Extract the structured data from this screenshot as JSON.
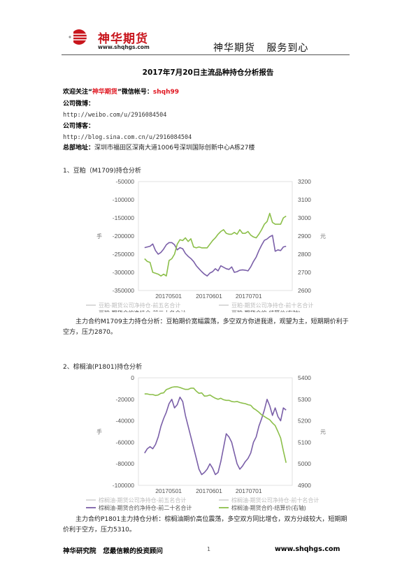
{
  "header": {
    "logo_text": "神华期货",
    "logo_url": "www.shqhgs.com",
    "slogan": "神华期货   服务到心"
  },
  "title": "2017年7月20日主流品种持仓分析报告",
  "info": {
    "wechat_prefix": "欢迎关注“",
    "wechat_name": "神华期货",
    "wechat_mid": "”微信帐号：",
    "wechat_id": "shqh99",
    "weibo_label": "公司微博：",
    "weibo_url": "http://weibo.com/u/2916084504",
    "blog_label": "公司博客：",
    "blog_url": "http://blog.sina.com.cn/u/2916084504",
    "address_label": "总部地址：",
    "address": "深圳市福田区深南大道1006号深圳国际创新中心A栋27楼"
  },
  "sections": [
    {
      "heading": "1、豆粕（M1709)持仓分析",
      "analysis": "主力合约M1709主力持仓分析：豆粕期价宽幅震荡，多空双方你进我退，观望为主，短期期价利于空方，压力2870。"
    },
    {
      "heading": "2、棕榈油(P1801)持仓分析",
      "analysis": "主力合约P1801主力持仓分析：棕榈油期价高位震荡，多空双方同比增仓，双方分歧较大，短期期价利于空方，压力5310。"
    }
  ],
  "chart_data": [
    {
      "type": "line",
      "left_axis_title": "手",
      "right_axis_title": "元",
      "left_ticks": [
        "-50000",
        "-100000",
        "-150000",
        "-200000",
        "-250000",
        "-300000",
        "-350000"
      ],
      "right_ticks": [
        "3200",
        "3100",
        "3000",
        "2900",
        "2800",
        "2700",
        "2600"
      ],
      "ylim_left": [
        -350000,
        -50000
      ],
      "ylim_right": [
        2600,
        3200
      ],
      "x_ticks": [
        "20170501",
        "20170601",
        "20170701"
      ],
      "x_tick_positions": [
        0.196,
        0.459,
        0.717
      ],
      "legend_row1": [
        "豆粕-期货公司净持仓-前五名合计",
        "豆粕-期货公司净持仓-前十名合计"
      ],
      "legend_row2": [
        "豆粕-期货合约净持仓-前二十名合计",
        "豆粕-期货合约-结算价(右轴)"
      ],
      "series": [
        {
          "name": "豆粕-期货合约净持仓-前二十名合计",
          "axis": "left",
          "color": "#7a5fa8",
          "values": [
            -232000,
            -230000,
            -228000,
            -222000,
            -240000,
            -250000,
            -245000,
            -236000,
            -224000,
            -218000,
            -218000,
            -224000,
            -238000,
            -232000,
            -235000,
            -248000,
            -256000,
            -262000,
            -270000,
            -282000,
            -290000,
            -298000,
            -305000,
            -310000,
            -302000,
            -298000,
            -290000,
            -296000,
            -282000,
            -286000,
            -290000,
            -292000,
            -285000,
            -300000,
            -298000,
            -294000,
            -293000,
            -294000,
            -296000,
            -285000,
            -270000,
            -258000,
            -240000,
            -225000,
            -212000,
            -208000,
            -202000,
            -198000,
            -242000,
            -238000,
            -240000,
            -230000,
            -228000
          ]
        },
        {
          "name": "豆粕-期货合约-结算价(右轴)",
          "axis": "right",
          "color": "#8cbf4a",
          "values": [
            2775,
            2760,
            2755,
            2700,
            2695,
            2690,
            2680,
            2690,
            2680,
            2765,
            2775,
            2800,
            2855,
            2880,
            2875,
            2890,
            2870,
            2885,
            2840,
            2835,
            2840,
            2835,
            2835,
            2835,
            2855,
            2875,
            2890,
            2910,
            2925,
            2935,
            2915,
            2910,
            2910,
            2920,
            2910,
            2935,
            2915,
            2915,
            2925,
            2905,
            2895,
            2890,
            2910,
            2935,
            2965,
            2980,
            3025,
            2975,
            2965,
            2965,
            2965,
            3000,
            3010
          ]
        }
      ]
    },
    {
      "type": "line",
      "left_axis_title": "手",
      "right_axis_title": "元",
      "left_ticks": [
        "0",
        "-20000",
        "-40000",
        "-60000",
        "-80000",
        "-100000"
      ],
      "right_ticks": [
        "5400",
        "5300",
        "5200",
        "5100",
        "5000",
        "4900"
      ],
      "ylim_left": [
        -100000,
        0
      ],
      "ylim_right": [
        4900,
        5400
      ],
      "x_ticks": [
        "20170501",
        "20170601",
        "20170701"
      ],
      "x_tick_positions": [
        0.196,
        0.459,
        0.717
      ],
      "legend_row1": [
        "棕榈油-期货公司净持仓-前五名合计",
        "棕榈油-期货公司净持仓-前十名合计"
      ],
      "legend_row2": [
        "棕榈油-期货合约净持仓-前二十名合计",
        "棕榈油-期货合约-结算价(右轴)"
      ],
      "series": [
        {
          "name": "棕榈油-期货合约净持仓-前二十名合计",
          "axis": "left",
          "color": "#7a5fa8",
          "values": [
            -70000,
            -66000,
            -64000,
            -66000,
            -62000,
            -55000,
            -45000,
            -38000,
            -32000,
            -24000,
            -20000,
            -28000,
            -25000,
            -18000,
            -22000,
            -35000,
            -45000,
            -55000,
            -65000,
            -75000,
            -85000,
            -90000,
            -88000,
            -85000,
            -80000,
            -84000,
            -90000,
            -88000,
            -78000,
            -65000,
            -52000,
            -55000,
            -60000,
            -70000,
            -80000,
            -85000,
            -82000,
            -78000,
            -75000,
            -70000,
            -60000,
            -55000,
            -45000,
            -38000,
            -30000,
            -20000,
            -26000,
            -35000,
            -28000,
            -36000,
            -40000,
            -28000,
            -30000
          ]
        },
        {
          "name": "棕榈油-期货合约-结算价(右轴)",
          "axis": "right",
          "color": "#8cbf4a",
          "values": [
            5325,
            5325,
            5322,
            5322,
            5318,
            5320,
            5328,
            5330,
            5345,
            5350,
            5356,
            5358,
            5358,
            5355,
            5350,
            5346,
            5346,
            5352,
            5352,
            5338,
            5328,
            5330,
            5315,
            5316,
            5320,
            5312,
            5305,
            5300,
            5305,
            5298,
            5295,
            5295,
            5290,
            5288,
            5290,
            5285,
            5282,
            5280,
            5275,
            5272,
            5258,
            5250,
            5240,
            5228,
            5220,
            5212,
            5205,
            5190,
            5178,
            5150,
            5120,
            5060,
            5005
          ]
        }
      ]
    }
  ],
  "footer": {
    "left": "神华研究院   您最信赖的投资顾问",
    "page_mark": "1",
    "right": "www.shqhgs.com"
  },
  "colors": {
    "brand_red": "#c8161d",
    "purple": "#7a5fa8",
    "green": "#8cbf4a"
  }
}
